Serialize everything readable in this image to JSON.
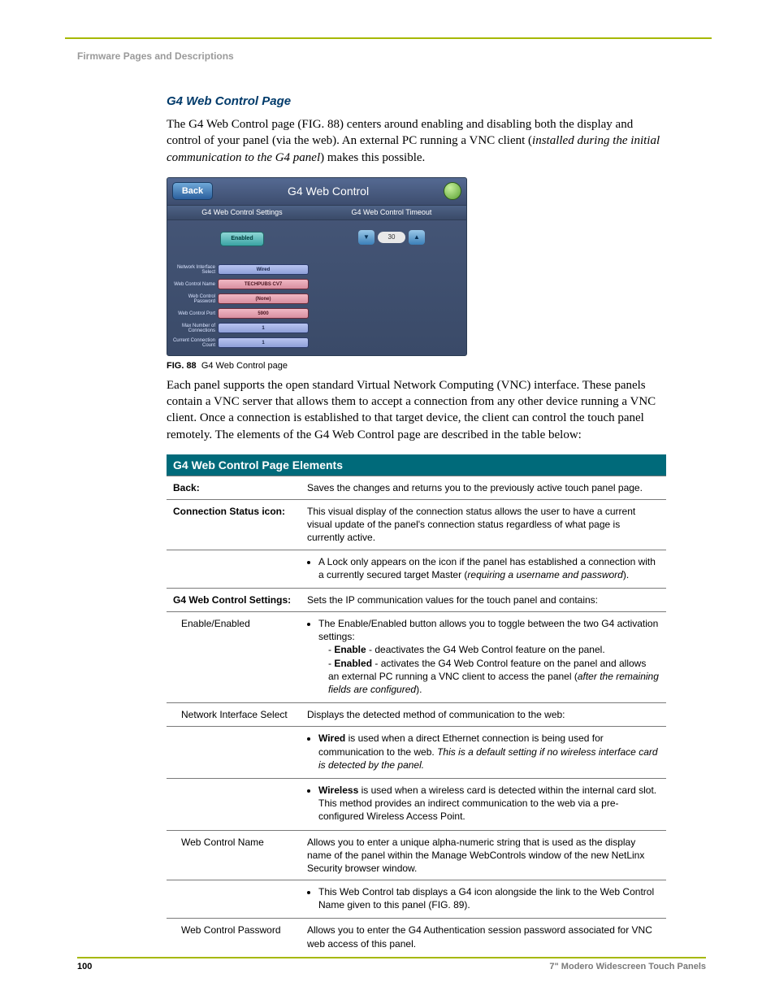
{
  "section_header": "Firmware Pages and Descriptions",
  "accent_color": "#a6b800",
  "heading_color": "#003a6a",
  "heading": "G4 Web Control Page",
  "para1_a": "The G4 Web Control page (FIG. 88) centers around enabling and disabling both the display and control of your panel (via the web). An external PC running a VNC client (",
  "para1_i": "installed during the initial communication to the G4 panel",
  "para1_b": ") makes this possible.",
  "screenshot": {
    "back": "Back",
    "title": "G4 Web Control",
    "left_header": "G4 Web Control Settings",
    "right_header": "G4 Web Control Timeout",
    "enabled": "Enabled",
    "timeout_value": "30",
    "rows": [
      {
        "label": "Network Interface Select",
        "value": "Wired",
        "style": "gblue"
      },
      {
        "label": "Web Control Name",
        "value": "TECHPUBS CV7",
        "style": "gred"
      },
      {
        "label": "Web Control Password",
        "value": "(None)",
        "style": "gred"
      },
      {
        "label": "Web Control Port",
        "value": "5900",
        "style": "gred"
      },
      {
        "label": "Max Number of Connections",
        "value": "1",
        "style": "gblue"
      },
      {
        "label": "Current Connection Count",
        "value": "1",
        "style": "gblue"
      }
    ]
  },
  "fig_label": "FIG. 88",
  "fig_caption": "G4 Web Control page",
  "para2": "Each panel supports the open standard Virtual Network Computing (VNC) interface. These panels contain a VNC server that allows them to accept a connection from any other device running a VNC client. Once a connection is established to that target device, the client can control the touch panel remotely. The elements of the G4 Web Control page are described in the table below:",
  "table": {
    "title": "G4 Web Control Page Elements",
    "header_bg": "#006a7a",
    "back_k": "Back:",
    "back_v": "Saves the changes and returns you to the previously active touch panel page.",
    "csi_k": "Connection Status icon:",
    "csi_v1": "This visual display of the connection status allows the user to have a current visual update of the panel's connection status regardless of what page is currently active.",
    "csi_b1_a": "A Lock only appears on the icon if the panel has established a connection with a currently secured target Master (",
    "csi_b1_i": "requiring a username and password",
    "csi_b1_b": ").",
    "g4s_k": "G4 Web Control Settings:",
    "g4s_v": "Sets the IP communication values for the touch panel and contains:",
    "en_k": "Enable/Enabled",
    "en_b1": "The Enable/Enabled button allows you to toggle between the two G4 activation settings:",
    "en_s1_a": "- ",
    "en_s1_b": "Enable",
    "en_s1_c": " - deactivates the G4 Web Control feature on the panel.",
    "en_s2_a": "- ",
    "en_s2_b": "Enabled",
    "en_s2_c": " - activates the G4 Web Control feature on the panel and allows an external PC running a VNC client to access the panel (",
    "en_s2_i": "after the remaining fields are configured",
    "en_s2_d": ").",
    "nis_k": "Network Interface Select",
    "nis_v": "Displays the detected method of communication to the web:",
    "nis_b1_a": "Wired",
    "nis_b1_b": " is used when a direct Ethernet connection is being used for communication to the web. ",
    "nis_b1_i": "This is a default setting if no wireless interface card is detected by the panel.",
    "nis_b2_a": "Wireless",
    "nis_b2_b": " is used when a wireless card is detected within the internal card slot. This method provides an indirect communication to the web via a pre-configured Wireless Access Point.",
    "wcn_k": "Web Control Name",
    "wcn_v": "Allows you to enter a unique alpha-numeric string that is used as the display name of the panel within the Manage WebControls window of the new NetLinx Security browser window.",
    "wcn_b1": "This Web Control tab displays a G4 icon alongside the link to the Web Control Name given to this panel (FIG. 89).",
    "wcp_k": "Web Control Password",
    "wcp_v": "Allows you to enter the G4 Authentication session password associated for VNC web access of this panel."
  },
  "page_number": "100",
  "doc_title": "7\" Modero Widescreen Touch Panels"
}
